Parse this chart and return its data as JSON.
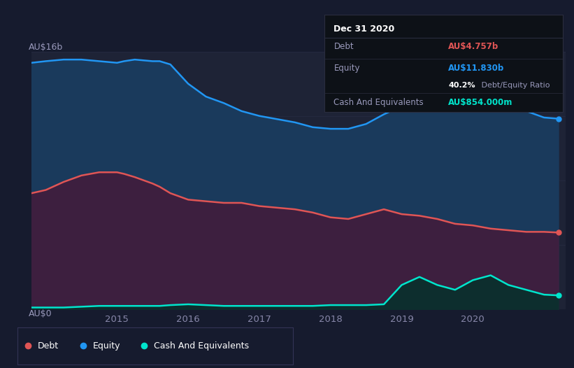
{
  "background_color": "#161b2e",
  "plot_bg_color": "#1e2336",
  "title_label": "AU$16b",
  "zero_label": "AU$0",
  "ylim": [
    0,
    16
  ],
  "xlim": [
    2013.8,
    2021.3
  ],
  "equity_color": "#2196f3",
  "equity_fill": "#1a3a5c",
  "debt_color": "#e05555",
  "debt_fill": "#3d1f3f",
  "cash_color": "#00e5cc",
  "cash_fill": "#0d2e2e",
  "tooltip_bg": "#0d1117",
  "tooltip_border": "#2a2d3e",
  "grid_color": "#252a40",
  "equity_x": [
    2013.8,
    2014.0,
    2014.25,
    2014.5,
    2014.75,
    2015.0,
    2015.1,
    2015.25,
    2015.5,
    2015.6,
    2015.75,
    2016.0,
    2016.25,
    2016.5,
    2016.75,
    2017.0,
    2017.25,
    2017.5,
    2017.75,
    2018.0,
    2018.25,
    2018.5,
    2018.75,
    2019.0,
    2019.25,
    2019.5,
    2019.75,
    2020.0,
    2020.25,
    2020.5,
    2020.75,
    2021.0,
    2021.2
  ],
  "equity_y": [
    15.3,
    15.4,
    15.5,
    15.5,
    15.4,
    15.3,
    15.4,
    15.5,
    15.4,
    15.4,
    15.2,
    14.0,
    13.2,
    12.8,
    12.3,
    12.0,
    11.8,
    11.6,
    11.3,
    11.2,
    11.2,
    11.5,
    12.1,
    12.6,
    13.1,
    13.3,
    13.0,
    12.9,
    12.7,
    12.5,
    12.3,
    11.9,
    11.83
  ],
  "debt_x": [
    2013.8,
    2014.0,
    2014.25,
    2014.5,
    2014.75,
    2015.0,
    2015.1,
    2015.25,
    2015.5,
    2015.6,
    2015.75,
    2016.0,
    2016.25,
    2016.5,
    2016.75,
    2017.0,
    2017.25,
    2017.5,
    2017.75,
    2018.0,
    2018.25,
    2018.5,
    2018.75,
    2019.0,
    2019.25,
    2019.5,
    2019.75,
    2020.0,
    2020.25,
    2020.5,
    2020.75,
    2021.0,
    2021.2
  ],
  "debt_y": [
    7.2,
    7.4,
    7.9,
    8.3,
    8.5,
    8.5,
    8.4,
    8.2,
    7.8,
    7.6,
    7.2,
    6.8,
    6.7,
    6.6,
    6.6,
    6.4,
    6.3,
    6.2,
    6.0,
    5.7,
    5.6,
    5.9,
    6.2,
    5.9,
    5.8,
    5.6,
    5.3,
    5.2,
    5.0,
    4.9,
    4.8,
    4.8,
    4.757
  ],
  "cash_x": [
    2013.8,
    2014.0,
    2014.25,
    2014.5,
    2014.75,
    2015.0,
    2015.1,
    2015.25,
    2015.5,
    2015.6,
    2015.75,
    2016.0,
    2016.25,
    2016.5,
    2016.75,
    2017.0,
    2017.25,
    2017.5,
    2017.75,
    2018.0,
    2018.25,
    2018.5,
    2018.75,
    2019.0,
    2019.25,
    2019.5,
    2019.75,
    2020.0,
    2020.25,
    2020.5,
    2020.75,
    2021.0,
    2021.2
  ],
  "cash_y": [
    0.1,
    0.1,
    0.1,
    0.15,
    0.2,
    0.2,
    0.2,
    0.2,
    0.2,
    0.2,
    0.25,
    0.3,
    0.25,
    0.2,
    0.2,
    0.2,
    0.2,
    0.2,
    0.2,
    0.25,
    0.25,
    0.25,
    0.3,
    1.5,
    2.0,
    1.5,
    1.2,
    1.8,
    2.1,
    1.5,
    1.2,
    0.9,
    0.854
  ],
  "tooltip_date": "Dec 31 2020",
  "tooltip_debt_label": "Debt",
  "tooltip_debt_value": "AU$4.757b",
  "tooltip_equity_label": "Equity",
  "tooltip_equity_value": "AU$11.830b",
  "tooltip_ratio_bold": "40.2%",
  "tooltip_ratio_rest": " Debt/Equity Ratio",
  "tooltip_cash_label": "Cash And Equivalents",
  "tooltip_cash_value": "AU$854.000m",
  "legend_items": [
    "Debt",
    "Equity",
    "Cash And Equivalents"
  ],
  "legend_colors": [
    "#e05555",
    "#2196f3",
    "#00e5cc"
  ]
}
